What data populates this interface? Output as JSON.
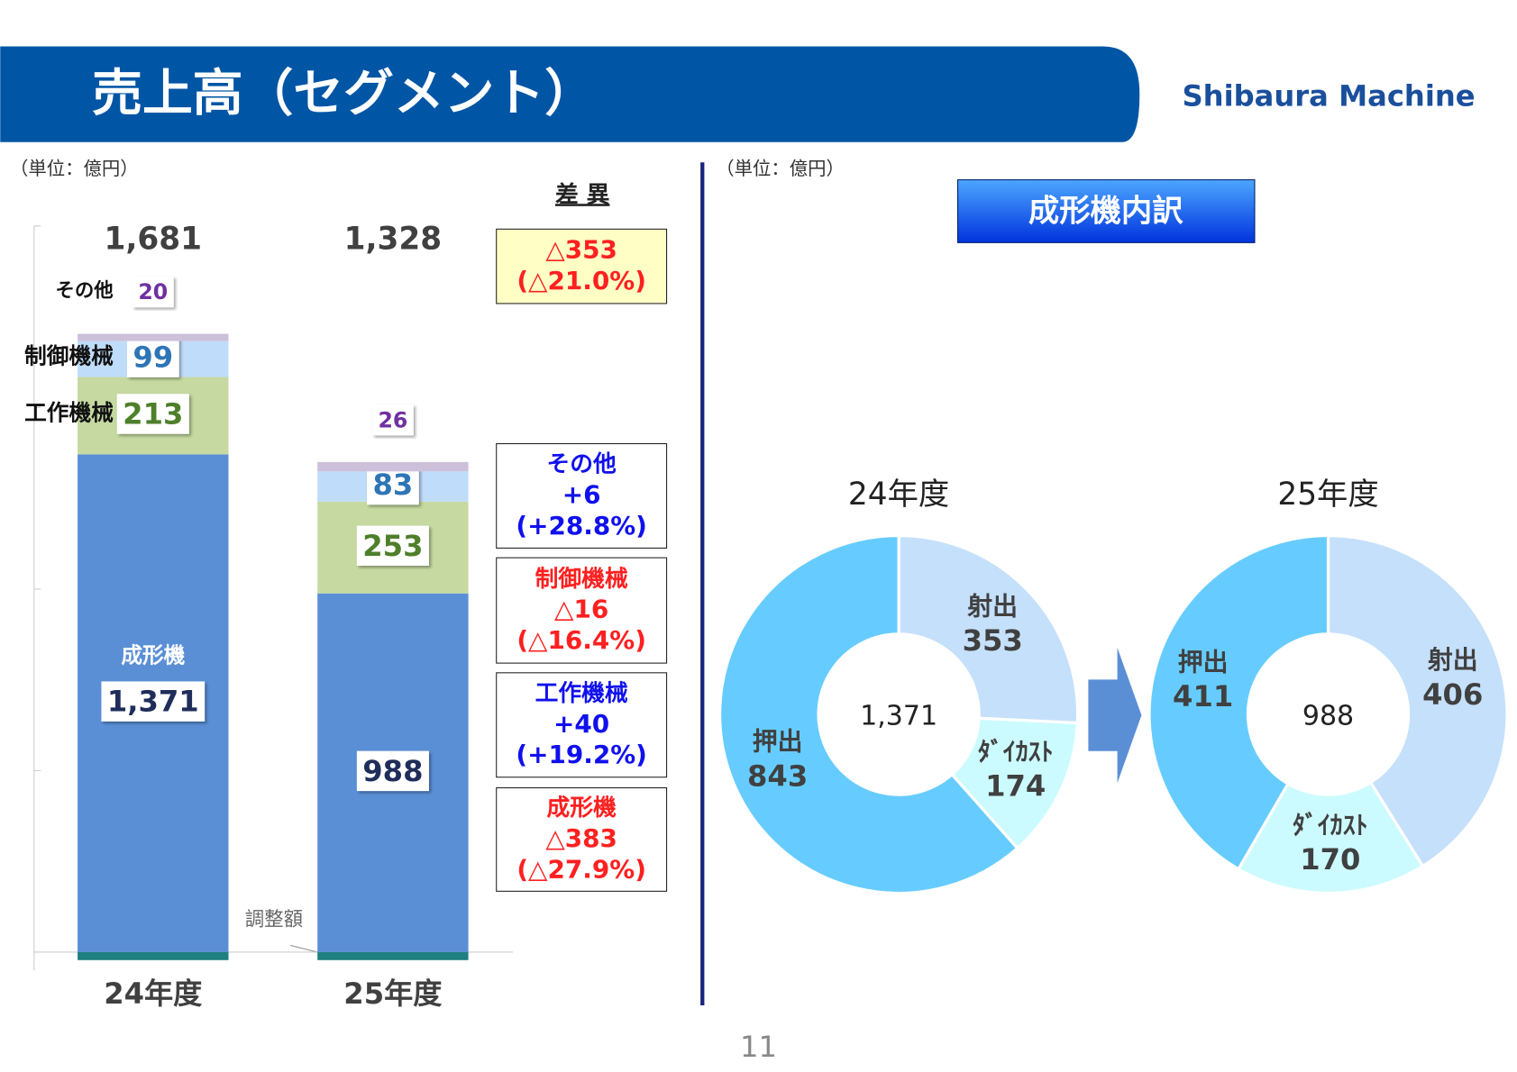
{
  "header": {
    "title": "売上高（セグメント）",
    "logo": "Shibaura Machine",
    "unit_left": "（単位：億円）",
    "unit_right": "（単位：億円）",
    "page": "11"
  },
  "chart_data": [
    {
      "type": "stacked_bar",
      "categories": [
        "24年度",
        "25年度"
      ],
      "series": [
        {
          "name": "成形機",
          "color": "#5a8fd6",
          "label_color": "#1f2d5a",
          "values": [
            1371,
            988
          ],
          "value_labels": [
            "1,371",
            "988"
          ]
        },
        {
          "name": "工作機械",
          "color": "#c5d9a0",
          "label_color": "#4e7f2a",
          "values": [
            213,
            253
          ]
        },
        {
          "name": "制御機械",
          "color": "#bfdcfb",
          "label_color": "#2e75b6",
          "values": [
            99,
            83
          ]
        },
        {
          "name": "その他",
          "color": "#ccc0da",
          "label_color": "#7030a0",
          "values": [
            20,
            26
          ]
        },
        {
          "name": "調整額",
          "color": "#1e8080",
          "values": [
            -22,
            -22
          ]
        }
      ],
      "totals": [
        1681,
        1328
      ],
      "total_labels": [
        "1,681",
        "1,328"
      ],
      "ylim": [
        -50,
        2000
      ],
      "yticks": [
        0,
        500,
        1000,
        1500,
        2000
      ]
    },
    {
      "type": "donut",
      "title": "24年度",
      "center_label": "1,371",
      "categories": [
        "射出",
        "ﾀﾞｲｶｽﾄ",
        "押出"
      ],
      "values": [
        353,
        174,
        843
      ],
      "colors": [
        "#c5e0fb",
        "#ccfbff",
        "#66ccff"
      ]
    },
    {
      "type": "donut",
      "title": "25年度",
      "center_label": "988",
      "categories": [
        "射出",
        "ﾀﾞｲｶｽﾄ",
        "押出"
      ],
      "values": [
        406,
        170,
        411
      ],
      "colors": [
        "#c5e0fb",
        "#ccfbff",
        "#66ccff"
      ]
    }
  ],
  "differences": {
    "title": "差 異",
    "items": [
      {
        "diff": "△353",
        "pct": "(△21.0%)",
        "color": "#ff2020",
        "fill": "#ffffc5"
      },
      {
        "label": "その他",
        "diff": "+6",
        "pct": "(+28.8%)",
        "color": "#1010ee",
        "fill": "#ffffff"
      },
      {
        "label": "制御機械",
        "diff": "△16",
        "pct": "(△16.4%)",
        "color": "#ff2020",
        "fill": "#ffffff"
      },
      {
        "label": "工作機械",
        "diff": "+40",
        "pct": "(+19.2%)",
        "color": "#1010ee",
        "fill": "#ffffff"
      },
      {
        "label": "成形機",
        "diff": "△383",
        "pct": "(△27.9%)",
        "color": "#ff2020",
        "fill": "#ffffff"
      }
    ]
  },
  "breakdown_title": "成形機内訳"
}
